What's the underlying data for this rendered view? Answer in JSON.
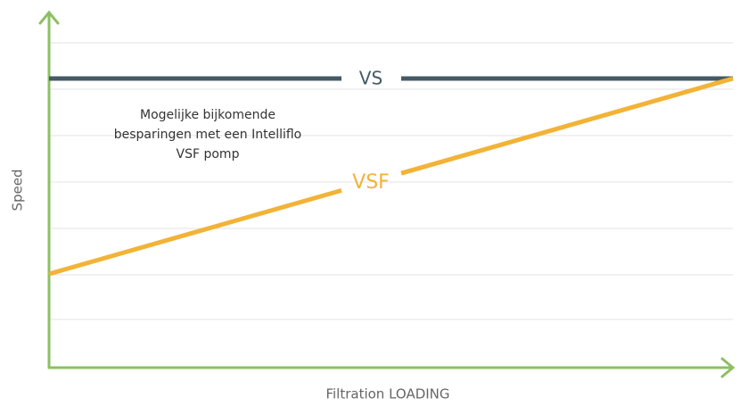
{
  "axes": {
    "y_label": "Speed",
    "x_label": "Filtration LOADING"
  },
  "lines": {
    "vs": "VS",
    "vsf": "VSF"
  },
  "note": [
    "Mogelijke bijkomende",
    "besparingen met een Intelliflo",
    "VSF pomp"
  ]
}
